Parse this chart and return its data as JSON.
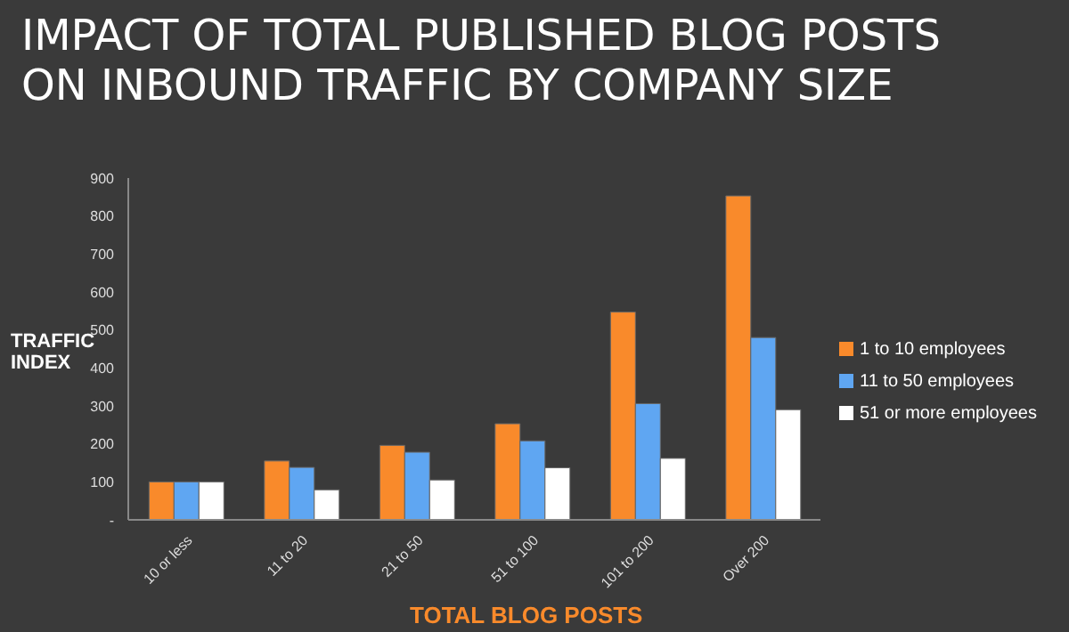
{
  "chart_data": {
    "type": "bar",
    "title": "IMPACT OF TOTAL PUBLISHED BLOG POSTS ON INBOUND TRAFFIC BY COMPANY SIZE",
    "xlabel": "TOTAL BLOG POSTS",
    "ylabel": "TRAFFIC INDEX",
    "categories": [
      "10 or less",
      "11 to 20",
      "21 to 50",
      "51 to 100",
      "101 to 200",
      "Over 200"
    ],
    "series": [
      {
        "name": "1 to 10 employees",
        "color": "#f98a2b",
        "values": [
          100,
          155,
          196,
          253,
          547,
          853
        ]
      },
      {
        "name": "11 to 50 employees",
        "color": "#5fa6f2",
        "values": [
          100,
          138,
          178,
          208,
          306,
          480
        ]
      },
      {
        "name": "51 or more employees",
        "color": "#ffffff",
        "values": [
          100,
          79,
          105,
          137,
          162,
          290
        ]
      }
    ],
    "ylim": [
      0,
      900
    ],
    "yticks": [
      {
        "value": 0,
        "label": "-"
      },
      100,
      200,
      300,
      400,
      500,
      600,
      700,
      800,
      900
    ],
    "grid": false,
    "legend": "right"
  }
}
